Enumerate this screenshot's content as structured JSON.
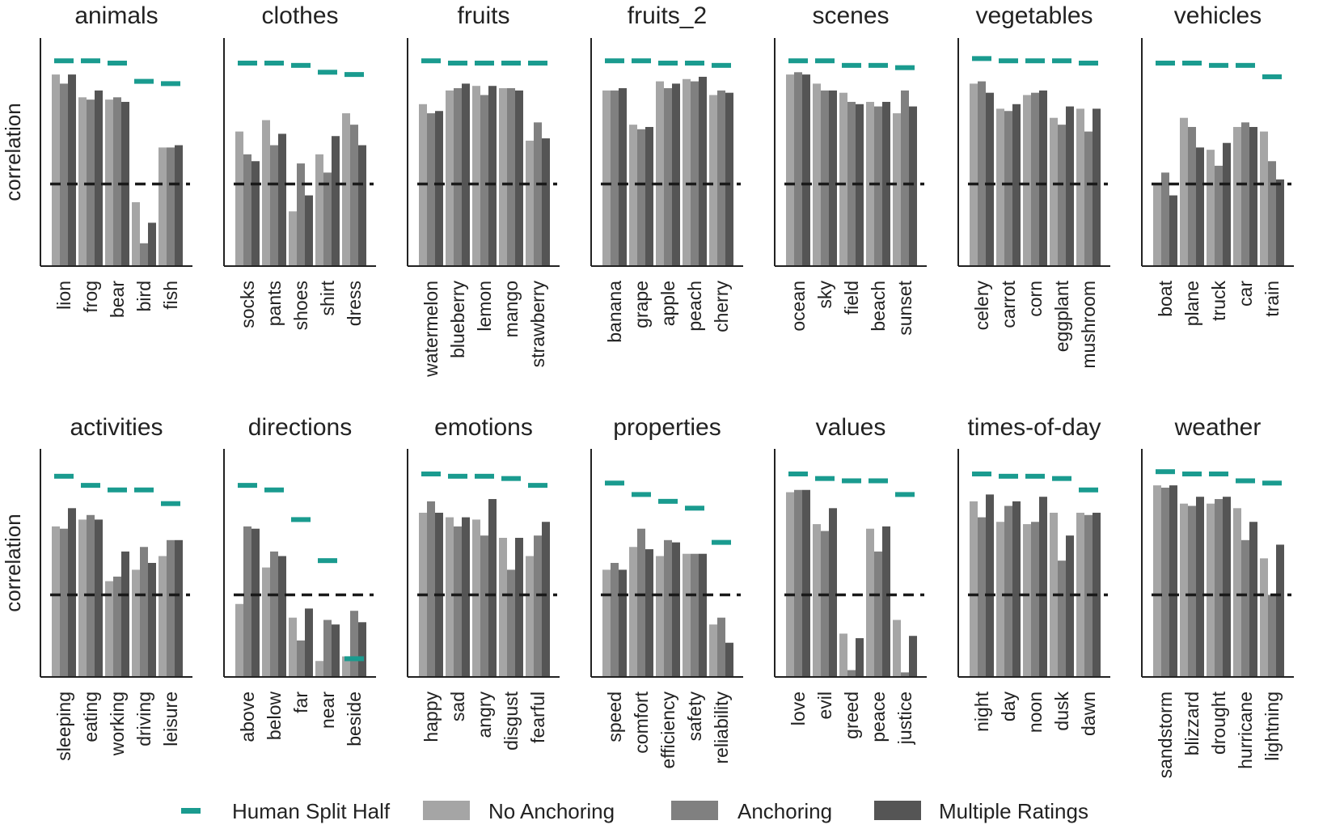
{
  "chart_data": {
    "type": "bar",
    "ylabel": "correlation",
    "ylim": [
      0,
      1
    ],
    "reference_line": 0.36,
    "legend": [
      "Human Split Half",
      "No Anchoring",
      "Anchoring",
      "Multiple Ratings"
    ],
    "legend_placement": "bottom",
    "colors": {
      "Human Split Half": "#1a9b8f",
      "No Anchoring": "#a5a5a5",
      "Anchoring": "#808080",
      "Multiple Ratings": "#555555",
      "reference_line": "#1a1a1a"
    },
    "panels": [
      {
        "title": "animals",
        "categories": [
          "lion",
          "frog",
          "bear",
          "bird",
          "fish"
        ],
        "human": [
          0.9,
          0.9,
          0.89,
          0.81,
          0.8
        ],
        "no_anchoring": [
          0.84,
          0.74,
          0.73,
          0.28,
          0.52
        ],
        "anchoring": [
          0.8,
          0.73,
          0.74,
          0.1,
          0.52
        ],
        "multiple_ratings": [
          0.84,
          0.77,
          0.72,
          0.19,
          0.53
        ]
      },
      {
        "title": "clothes",
        "categories": [
          "socks",
          "pants",
          "shoes",
          "shirt",
          "dress"
        ],
        "human": [
          0.89,
          0.89,
          0.88,
          0.85,
          0.84
        ],
        "no_anchoring": [
          0.59,
          0.64,
          0.24,
          0.49,
          0.67
        ],
        "anchoring": [
          0.49,
          0.53,
          0.45,
          0.41,
          0.62
        ],
        "multiple_ratings": [
          0.46,
          0.58,
          0.31,
          0.57,
          0.53
        ]
      },
      {
        "title": "fruits",
        "categories": [
          "watermelon",
          "blueberry",
          "lemon",
          "mango",
          "strawberry"
        ],
        "human": [
          0.9,
          0.89,
          0.89,
          0.89,
          0.89
        ],
        "no_anchoring": [
          0.71,
          0.77,
          0.79,
          0.78,
          0.55
        ],
        "anchoring": [
          0.67,
          0.78,
          0.75,
          0.78,
          0.63
        ],
        "multiple_ratings": [
          0.68,
          0.8,
          0.79,
          0.77,
          0.56
        ]
      },
      {
        "title": "fruits_2",
        "categories": [
          "banana",
          "grape",
          "apple",
          "peach",
          "cherry"
        ],
        "human": [
          0.9,
          0.9,
          0.89,
          0.89,
          0.88
        ],
        "no_anchoring": [
          0.77,
          0.62,
          0.81,
          0.82,
          0.75
        ],
        "anchoring": [
          0.77,
          0.6,
          0.78,
          0.81,
          0.77
        ],
        "multiple_ratings": [
          0.78,
          0.61,
          0.8,
          0.83,
          0.76
        ]
      },
      {
        "title": "scenes",
        "categories": [
          "ocean",
          "sky",
          "field",
          "beach",
          "sunset"
        ],
        "human": [
          0.9,
          0.9,
          0.88,
          0.88,
          0.87
        ],
        "no_anchoring": [
          0.84,
          0.8,
          0.76,
          0.72,
          0.67
        ],
        "anchoring": [
          0.85,
          0.77,
          0.72,
          0.7,
          0.77
        ],
        "multiple_ratings": [
          0.84,
          0.77,
          0.71,
          0.72,
          0.7
        ]
      },
      {
        "title": "vegetables",
        "categories": [
          "celery",
          "carrot",
          "corn",
          "eggplant",
          "mushroom"
        ],
        "human": [
          0.91,
          0.9,
          0.9,
          0.9,
          0.89
        ],
        "no_anchoring": [
          0.8,
          0.69,
          0.75,
          0.65,
          0.69
        ],
        "anchoring": [
          0.81,
          0.68,
          0.76,
          0.62,
          0.59
        ],
        "multiple_ratings": [
          0.76,
          0.71,
          0.77,
          0.7,
          0.69
        ]
      },
      {
        "title": "vehicles",
        "categories": [
          "boat",
          "plane",
          "truck",
          "car",
          "train"
        ],
        "human": [
          0.89,
          0.89,
          0.88,
          0.88,
          0.83
        ],
        "no_anchoring": [
          0.36,
          0.65,
          0.51,
          0.61,
          0.59
        ],
        "anchoring": [
          0.41,
          0.61,
          0.44,
          0.63,
          0.46
        ],
        "multiple_ratings": [
          0.31,
          0.52,
          0.54,
          0.61,
          0.38
        ]
      },
      {
        "title": "activities",
        "categories": [
          "sleeping",
          "eating",
          "working",
          "driving",
          "leisure"
        ],
        "human": [
          0.88,
          0.84,
          0.82,
          0.82,
          0.76
        ],
        "no_anchoring": [
          0.66,
          0.69,
          0.42,
          0.47,
          0.53
        ],
        "anchoring": [
          0.65,
          0.71,
          0.44,
          0.57,
          0.6
        ],
        "multiple_ratings": [
          0.74,
          0.69,
          0.55,
          0.5,
          0.6
        ]
      },
      {
        "title": "directions",
        "categories": [
          "above",
          "below",
          "far",
          "near",
          "beside"
        ],
        "human": [
          0.84,
          0.82,
          0.69,
          0.51,
          0.08
        ],
        "no_anchoring": [
          0.32,
          0.48,
          0.26,
          0.07,
          0.09
        ],
        "anchoring": [
          0.66,
          0.55,
          0.16,
          0.25,
          0.29
        ],
        "multiple_ratings": [
          0.65,
          0.53,
          0.3,
          0.23,
          0.24
        ]
      },
      {
        "title": "emotions",
        "categories": [
          "happy",
          "sad",
          "angry",
          "disgust",
          "fearful"
        ],
        "human": [
          0.89,
          0.88,
          0.88,
          0.87,
          0.84
        ],
        "no_anchoring": [
          0.72,
          0.7,
          0.69,
          0.61,
          0.53
        ],
        "anchoring": [
          0.77,
          0.66,
          0.62,
          0.47,
          0.62
        ],
        "multiple_ratings": [
          0.72,
          0.7,
          0.78,
          0.61,
          0.68
        ]
      },
      {
        "title": "properties",
        "categories": [
          "speed",
          "comfort",
          "efficiency",
          "safety",
          "reliability"
        ],
        "human": [
          0.85,
          0.8,
          0.77,
          0.74,
          0.59
        ],
        "no_anchoring": [
          0.47,
          0.57,
          0.53,
          0.54,
          0.23
        ],
        "anchoring": [
          0.5,
          0.65,
          0.6,
          0.54,
          0.26
        ],
        "multiple_ratings": [
          0.47,
          0.56,
          0.59,
          0.54,
          0.15
        ]
      },
      {
        "title": "values",
        "categories": [
          "love",
          "evil",
          "greed",
          "peace",
          "justice"
        ],
        "human": [
          0.89,
          0.87,
          0.86,
          0.86,
          0.8
        ],
        "no_anchoring": [
          0.81,
          0.67,
          0.19,
          0.65,
          0.25
        ],
        "anchoring": [
          0.82,
          0.64,
          0.03,
          0.55,
          0.02
        ],
        "multiple_ratings": [
          0.82,
          0.74,
          0.17,
          0.66,
          0.18
        ]
      },
      {
        "title": "times-of-day",
        "categories": [
          "night",
          "day",
          "noon",
          "dusk",
          "dawn"
        ],
        "human": [
          0.89,
          0.88,
          0.88,
          0.87,
          0.82
        ],
        "no_anchoring": [
          0.77,
          0.68,
          0.67,
          0.72,
          0.72
        ],
        "anchoring": [
          0.7,
          0.75,
          0.68,
          0.51,
          0.71
        ],
        "multiple_ratings": [
          0.8,
          0.77,
          0.79,
          0.62,
          0.72
        ]
      },
      {
        "title": "weather",
        "categories": [
          "sandstorm",
          "blizzard",
          "drought",
          "hurricane",
          "lightning"
        ],
        "human": [
          0.9,
          0.89,
          0.89,
          0.86,
          0.85
        ],
        "no_anchoring": [
          0.84,
          0.76,
          0.76,
          0.74,
          0.52
        ],
        "anchoring": [
          0.83,
          0.75,
          0.78,
          0.6,
          0.36
        ],
        "multiple_ratings": [
          0.84,
          0.79,
          0.79,
          0.68,
          0.58
        ]
      }
    ]
  }
}
